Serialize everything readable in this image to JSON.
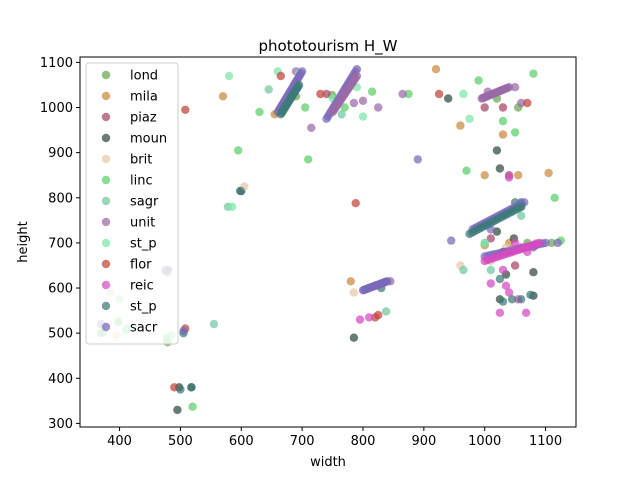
{
  "chart_data": {
    "type": "scatter",
    "title": "phototourism H_W",
    "xlabel": "width",
    "ylabel": "height",
    "xlim": [
      335,
      1150
    ],
    "ylim": [
      292,
      1112
    ],
    "xticks": [
      400,
      500,
      600,
      700,
      800,
      900,
      1000,
      1100
    ],
    "yticks": [
      300,
      400,
      500,
      600,
      700,
      800,
      900,
      1000,
      1100
    ],
    "legend_position": "top-left",
    "grid": false,
    "series": [
      {
        "name": "lond",
        "color": "#6aa84f",
        "points": [
          [
            370,
            500
          ],
          [
            479,
            480
          ],
          [
            690,
            1025
          ],
          [
            749,
            1028
          ],
          [
            1020,
            1020
          ],
          [
            1055,
            1000
          ],
          [
            1060,
            780
          ],
          [
            1110,
            700
          ],
          [
            1070,
            700
          ]
        ]
      },
      {
        "name": "mila",
        "color": "#c88a3a",
        "points": [
          [
            570,
            1025
          ],
          [
            655,
            985
          ],
          [
            780,
            615
          ],
          [
            920,
            1085
          ],
          [
            960,
            960
          ],
          [
            1000,
            850
          ],
          [
            1030,
            940
          ],
          [
            1055,
            850
          ],
          [
            1105,
            855
          ],
          [
            1040,
            700
          ],
          [
            1000,
            695
          ]
        ]
      },
      {
        "name": "piaz",
        "color": "#a8446a",
        "points": [
          [
            690,
            1040
          ],
          [
            740,
            1030
          ],
          [
            1000,
            1000
          ],
          [
            1030,
            1000
          ],
          [
            1040,
            850
          ],
          [
            1010,
            710
          ],
          [
            1050,
            650
          ]
        ]
      },
      {
        "name": "moun",
        "color": "#2e4a3f",
        "points": [
          [
            495,
            330
          ],
          [
            498,
            380
          ],
          [
            518,
            380
          ],
          [
            600,
            815
          ],
          [
            785,
            490
          ],
          [
            940,
            1020
          ],
          [
            1020,
            905
          ],
          [
            1025,
            865
          ],
          [
            1020,
            725
          ],
          [
            1035,
            630
          ],
          [
            1025,
            575
          ],
          [
            1080,
            635
          ],
          [
            1080,
            583
          ],
          [
            1048,
            710
          ]
        ]
      },
      {
        "name": "brit",
        "color": "#e8c8a8",
        "points": [
          [
            385,
            590
          ],
          [
            395,
            495
          ],
          [
            605,
            825
          ],
          [
            785,
            590
          ],
          [
            960,
            650
          ],
          [
            1035,
            690
          ],
          [
            1085,
            700
          ],
          [
            1010,
            660
          ]
        ]
      },
      {
        "name": "linc",
        "color": "#5ad06a",
        "points": [
          [
            398,
            525
          ],
          [
            478,
            490
          ],
          [
            520,
            337
          ],
          [
            595,
            905
          ],
          [
            630,
            990
          ],
          [
            705,
            1000
          ],
          [
            710,
            885
          ],
          [
            770,
            1000
          ],
          [
            815,
            1035
          ],
          [
            875,
            1030
          ],
          [
            970,
            860
          ],
          [
            990,
            1060
          ],
          [
            1030,
            970
          ],
          [
            1050,
            945
          ],
          [
            1080,
            1075
          ],
          [
            1115,
            800
          ],
          [
            1125,
            705
          ]
        ]
      },
      {
        "name": "sagr",
        "color": "#72c8a4",
        "points": [
          [
            373,
            503
          ],
          [
            412,
            510
          ],
          [
            555,
            520
          ],
          [
            578,
            780
          ],
          [
            645,
            1040
          ],
          [
            765,
            985
          ],
          [
            838,
            548
          ],
          [
            965,
            640
          ],
          [
            1000,
            700
          ],
          [
            1010,
            640
          ],
          [
            1060,
            760
          ]
        ]
      },
      {
        "name": "unit",
        "color": "#9a6aa8",
        "points": [
          [
            475,
            640
          ],
          [
            690,
            1080
          ],
          [
            715,
            955
          ],
          [
            785,
            1010
          ],
          [
            800,
            1015
          ],
          [
            825,
            1000
          ],
          [
            845,
            615
          ],
          [
            865,
            1030
          ],
          [
            1005,
            1035
          ],
          [
            1050,
            1045
          ],
          [
            1060,
            1010
          ]
        ]
      },
      {
        "name": "st_p",
        "color": "#7ce8a8",
        "points": [
          [
            400,
            575
          ],
          [
            410,
            505
          ],
          [
            485,
            495
          ],
          [
            580,
            1070
          ],
          [
            585,
            780
          ],
          [
            660,
            1080
          ],
          [
            695,
            1075
          ],
          [
            750,
            1020
          ],
          [
            790,
            1045
          ],
          [
            800,
            980
          ],
          [
            965,
            1030
          ],
          [
            975,
            975
          ],
          [
            1000,
            700
          ]
        ]
      },
      {
        "name": "flor",
        "color": "#c0443a",
        "points": [
          [
            490,
            380
          ],
          [
            508,
            510
          ],
          [
            508,
            995
          ],
          [
            665,
            1070
          ],
          [
            730,
            1030
          ],
          [
            788,
            788
          ],
          [
            820,
            535
          ],
          [
            825,
            540
          ],
          [
            925,
            1030
          ],
          [
            1070,
            1010
          ],
          [
            1030,
            680
          ]
        ]
      },
      {
        "name": "reic",
        "color": "#d64ac0",
        "points": [
          [
            478,
            635
          ],
          [
            795,
            530
          ],
          [
            810,
            535
          ],
          [
            1025,
            545
          ],
          [
            1040,
            590
          ],
          [
            1055,
            575
          ],
          [
            1068,
            545
          ],
          [
            1040,
            845
          ],
          [
            1010,
            610
          ],
          [
            1035,
            605
          ],
          [
            1050,
            700
          ],
          [
            1060,
            690
          ],
          [
            1070,
            680
          ],
          [
            1030,
            640
          ]
        ]
      },
      {
        "name": "st_p",
        "color": "#3d7a7a",
        "points": [
          [
            480,
            640
          ],
          [
            500,
            375
          ],
          [
            505,
            500
          ],
          [
            518,
            380
          ],
          [
            598,
            815
          ],
          [
            820,
            605
          ],
          [
            830,
            600
          ],
          [
            1030,
            570
          ],
          [
            1045,
            575
          ],
          [
            1060,
            575
          ],
          [
            1075,
            585
          ],
          [
            1050,
            790
          ],
          [
            1060,
            790
          ],
          [
            1025,
            620
          ]
        ]
      },
      {
        "name": "sacr",
        "color": "#7a6ab8",
        "points": [
          [
            370,
            520
          ],
          [
            505,
            505
          ],
          [
            890,
            885
          ],
          [
            945,
            705
          ],
          [
            1010,
            730
          ],
          [
            1080,
            690
          ],
          [
            1120,
            700
          ]
        ]
      }
    ],
    "clusters": [
      {
        "series_index": 12,
        "from": [
          660,
          990
        ],
        "to": [
          700,
          1080
        ]
      },
      {
        "series_index": 11,
        "from": [
          665,
          985
        ],
        "to": [
          695,
          1050
        ]
      },
      {
        "series_index": 12,
        "from": [
          740,
          975
        ],
        "to": [
          790,
          1085
        ]
      },
      {
        "series_index": 7,
        "from": [
          750,
          990
        ],
        "to": [
          790,
          1070
        ]
      },
      {
        "series_index": 12,
        "from": [
          980,
          730
        ],
        "to": [
          1065,
          790
        ]
      },
      {
        "series_index": 11,
        "from": [
          975,
          720
        ],
        "to": [
          1060,
          780
        ]
      },
      {
        "series_index": 12,
        "from": [
          1000,
          670
        ],
        "to": [
          1100,
          700
        ]
      },
      {
        "series_index": 10,
        "from": [
          1000,
          660
        ],
        "to": [
          1090,
          700
        ]
      },
      {
        "series_index": 7,
        "from": [
          995,
          1020
        ],
        "to": [
          1040,
          1045
        ]
      },
      {
        "series_index": 12,
        "from": [
          800,
          595
        ],
        "to": [
          840,
          615
        ]
      }
    ]
  }
}
